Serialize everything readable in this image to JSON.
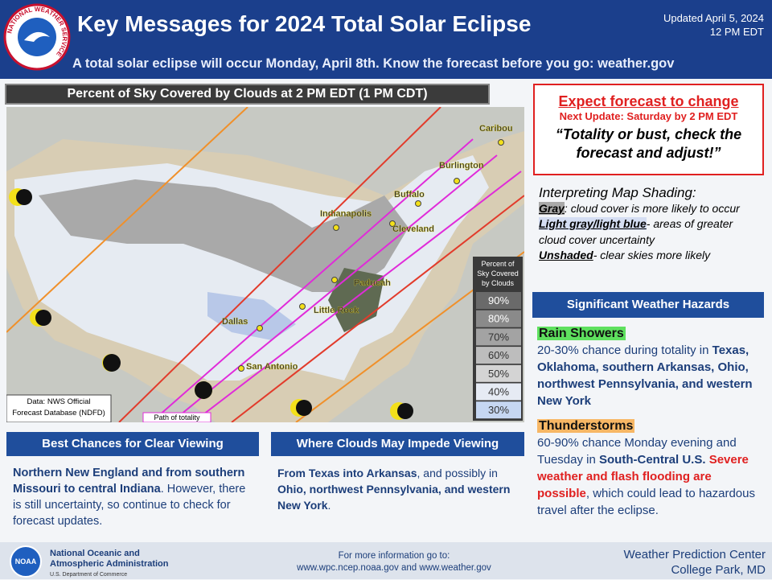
{
  "header": {
    "logo_text": "NATIONAL WEATHER SERVICE",
    "title": "Key Messages for 2024 Total Solar Eclipse",
    "updated": "Updated April 5, 2024",
    "time": "12 PM EDT",
    "subtitle": "A total solar eclipse will occur Monday, April 8th. Know the forecast before you go: weather.gov"
  },
  "map": {
    "title": "Percent of Sky Covered by Clouds at 2 PM EDT (1 PM CDT)",
    "cities": [
      "Caribou",
      "Burlington",
      "Buffalo",
      "Cleveland",
      "Indianapolis",
      "Paducah",
      "Little Rock",
      "Dallas",
      "San Antonio"
    ],
    "legend": {
      "title": "Percent of Sky Covered by Clouds",
      "levels": [
        "90%",
        "80%",
        "70%",
        "60%",
        "50%",
        "40%",
        "30%"
      ]
    },
    "source": "Data: NWS Official Forecast Database (NDFD)",
    "path_label": "Path of totality"
  },
  "forecast_box": {
    "headline": "Expect forecast to change",
    "next_update": "Next Update: Saturday by 2 PM EDT",
    "quote": "“Totality or bust, check the forecast and adjust!”"
  },
  "interpreting": {
    "title": "Interpreting Map Shading:",
    "items": [
      [
        "Gray",
        ": cloud cover is more likely to occur"
      ],
      [
        "Light gray/light blue",
        "- areas of greater cloud cover uncertainty"
      ],
      [
        "Unshaded",
        "- clear skies more likely"
      ]
    ]
  },
  "hazards": {
    "title": "Significant Weather Hazards",
    "items": [
      {
        "name": "Rain Showers",
        "text": [
          "20-30% chance during totality in ",
          "Texas, Oklahoma, southern Arkansas, Ohio, northwest Pennsylvania, and western New York"
        ]
      },
      {
        "name": "Thunderstorms",
        "text": [
          "60-90% chance Monday evening and Tuesday in ",
          "South-Central U.S.",
          "Severe weather and flash flooding are possible",
          ", which could lead to hazardous travel after the eclipse."
        ]
      }
    ]
  },
  "clear_viewing": {
    "title": "Best Chances for Clear Viewing",
    "text": [
      "Northern New England and from southern Missouri  to central Indiana",
      ". However, there is still uncertainty, so continue to check for forecast updates."
    ]
  },
  "impede_viewing": {
    "title": "Where Clouds May Impede Viewing",
    "text": [
      "From Texas into Arkansas",
      ", and possibly in ",
      "Ohio, northwest Pennsylvania, and western New York",
      "."
    ]
  },
  "footer": {
    "noaa_logo": "NOAA",
    "agency": [
      "National Oceanic and",
      "Atmospheric Administration"
    ],
    "department": "U.S. Department of Commerce",
    "info": [
      "For more information go to:",
      "www.wpc.ncep.noaa.gov and www.weather.gov"
    ],
    "center": [
      "Weather Prediction Center",
      "College Park, MD"
    ]
  }
}
